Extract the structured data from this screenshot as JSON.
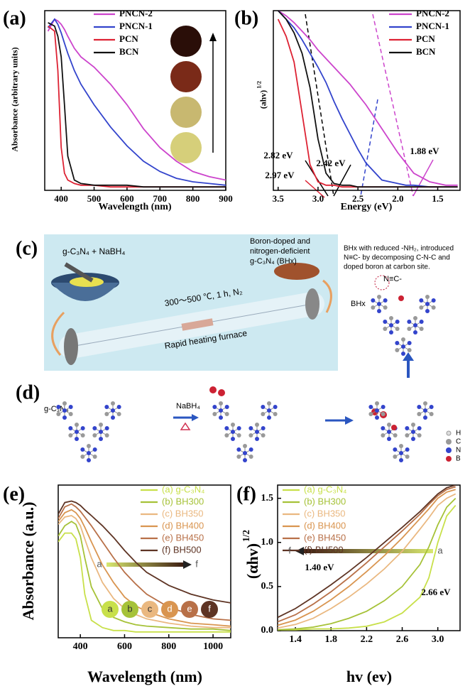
{
  "chart_data": [
    {
      "type": "line",
      "panel": "(a)",
      "xlabel": "Wavelength (nm)",
      "ylabel": "Absorbance (arbitrary units)",
      "xlim": [
        350,
        900
      ],
      "ylim": [
        0,
        1.05
      ],
      "xticks": [
        400,
        500,
        600,
        700,
        800,
        900
      ],
      "legend": "upper right",
      "x": [
        360,
        380,
        390,
        400,
        410,
        420,
        440,
        460,
        500,
        550,
        600,
        650,
        700,
        750,
        800,
        850,
        900
      ],
      "series": [
        {
          "name": "PNCN-2",
          "color": "#cc44cc",
          "values": [
            0.93,
            1.0,
            0.99,
            0.97,
            0.94,
            0.9,
            0.83,
            0.78,
            0.72,
            0.62,
            0.5,
            0.36,
            0.25,
            0.17,
            0.11,
            0.08,
            0.06
          ]
        },
        {
          "name": "PNCN-1",
          "color": "#3344cc",
          "values": [
            0.95,
            1.0,
            0.97,
            0.92,
            0.86,
            0.8,
            0.7,
            0.62,
            0.5,
            0.37,
            0.26,
            0.17,
            0.11,
            0.07,
            0.05,
            0.04,
            0.03
          ]
        },
        {
          "name": "PCN",
          "color": "#dd2233",
          "values": [
            0.96,
            0.93,
            0.7,
            0.25,
            0.1,
            0.06,
            0.04,
            0.03,
            0.03,
            0.02,
            0.02,
            0.02,
            0.02,
            0.02,
            0.02,
            0.02,
            0.02
          ]
        },
        {
          "name": "BCN",
          "color": "#111111",
          "values": [
            0.98,
            0.96,
            0.9,
            0.78,
            0.5,
            0.2,
            0.06,
            0.04,
            0.03,
            0.03,
            0.03,
            0.02,
            0.02,
            0.02,
            0.02,
            0.02,
            0.02
          ]
        }
      ]
    },
    {
      "type": "line",
      "panel": "(b)",
      "xlabel": "Energy (eV)",
      "ylabel": "(ahv)",
      "ylabel_sup": "1/2",
      "xlim": [
        3.56,
        1.22
      ],
      "ylim": [
        0,
        1.05
      ],
      "xticks": [
        {
          "value": 3.5,
          "label": "3.5"
        },
        {
          "value": 3,
          "label": "3.0"
        },
        {
          "value": 2.5,
          "label": "2.5"
        },
        {
          "value": 2,
          "label": "2.0"
        },
        {
          "value": 1.5,
          "label": "1.5"
        }
      ],
      "legend": "upper right",
      "annotations": [
        "2.82 eV",
        "2.97 eV",
        "2.42 eV",
        "1.88 eV"
      ],
      "x": [
        3.5,
        3.4,
        3.3,
        3.2,
        3.1,
        3.0,
        2.9,
        2.8,
        2.7,
        2.6,
        2.5,
        2.4,
        2.2,
        2.0,
        1.9,
        1.8,
        1.6,
        1.4,
        1.25
      ],
      "series": [
        {
          "name": "PNCN-2",
          "color": "#cc44cc",
          "values": [
            1.05,
            1.02,
            0.98,
            0.93,
            0.88,
            0.82,
            0.77,
            0.72,
            0.67,
            0.62,
            0.56,
            0.5,
            0.36,
            0.22,
            0.16,
            0.1,
            0.05,
            0.03,
            0.03
          ]
        },
        {
          "name": "PNCN-1",
          "color": "#3344cc",
          "values": [
            1.05,
            1.0,
            0.95,
            0.88,
            0.8,
            0.72,
            0.63,
            0.52,
            0.42,
            0.33,
            0.24,
            0.16,
            0.06,
            0.04,
            0.03,
            0.03,
            0.02,
            0.02,
            0.02
          ]
        },
        {
          "name": "PCN",
          "color": "#dd2233",
          "values": [
            1.0,
            0.9,
            0.75,
            0.45,
            0.15,
            0.05,
            0.03,
            0.03,
            0.02,
            0.02,
            0.02,
            0.02,
            0.02,
            0.02,
            0.02,
            0.02,
            0.02,
            0.02,
            0.02
          ]
        },
        {
          "name": "BCN",
          "color": "#111111",
          "values": [
            1.05,
            1.0,
            0.92,
            0.8,
            0.6,
            0.3,
            0.1,
            0.04,
            0.03,
            0.03,
            0.02,
            0.02,
            0.02,
            0.02,
            0.02,
            0.02,
            0.02,
            0.02,
            0.02
          ]
        }
      ]
    },
    {
      "type": "line",
      "panel": "(e)",
      "xlabel": "Wavelength (nm)",
      "ylabel": "Absorbance (a.u.)",
      "xlim": [
        300,
        1080
      ],
      "ylim": [
        0,
        1.05
      ],
      "xticks": [
        400,
        600,
        800,
        1000
      ],
      "legend": "upper right",
      "arrow_labels": [
        "a",
        "f"
      ],
      "swatch_labels": [
        "a",
        "b",
        "c",
        "d",
        "e",
        "f"
      ],
      "x": [
        300,
        330,
        360,
        380,
        400,
        420,
        450,
        500,
        550,
        600,
        650,
        700,
        800,
        900,
        1000,
        1080
      ],
      "series": [
        {
          "name": "(a) g-C₃N₄",
          "color": "#c8e04a",
          "values": [
            0.66,
            0.72,
            0.72,
            0.68,
            0.55,
            0.3,
            0.12,
            0.07,
            0.05,
            0.05,
            0.04,
            0.04,
            0.04,
            0.04,
            0.04,
            0.04
          ]
        },
        {
          "name": "(b) BH300",
          "color": "#a6c238",
          "values": [
            0.7,
            0.77,
            0.8,
            0.78,
            0.7,
            0.55,
            0.35,
            0.2,
            0.14,
            0.11,
            0.09,
            0.08,
            0.07,
            0.06,
            0.06,
            0.05
          ]
        },
        {
          "name": "(c) BH350",
          "color": "#eab880",
          "values": [
            0.78,
            0.83,
            0.84,
            0.82,
            0.77,
            0.68,
            0.55,
            0.38,
            0.27,
            0.2,
            0.16,
            0.13,
            0.1,
            0.08,
            0.07,
            0.07
          ]
        },
        {
          "name": "(d) BH400",
          "color": "#d99550",
          "values": [
            0.8,
            0.86,
            0.88,
            0.86,
            0.82,
            0.76,
            0.66,
            0.5,
            0.38,
            0.28,
            0.22,
            0.18,
            0.13,
            0.1,
            0.09,
            0.08
          ]
        },
        {
          "name": "(e) BH450",
          "color": "#b87048",
          "values": [
            0.82,
            0.9,
            0.92,
            0.9,
            0.87,
            0.83,
            0.77,
            0.66,
            0.55,
            0.45,
            0.37,
            0.3,
            0.21,
            0.16,
            0.13,
            0.12
          ]
        },
        {
          "name": "(f) BH500",
          "color": "#5e3424",
          "values": [
            0.85,
            0.93,
            0.94,
            0.93,
            0.91,
            0.88,
            0.84,
            0.77,
            0.69,
            0.6,
            0.52,
            0.45,
            0.36,
            0.3,
            0.26,
            0.24
          ]
        }
      ]
    },
    {
      "type": "line",
      "panel": "(f)",
      "xlabel": "hv (ev)",
      "ylabel": "(αhv)",
      "ylabel_sup": "1/2",
      "xlim": [
        1.2,
        3.25
      ],
      "ylim": [
        0,
        1.65
      ],
      "xticks": [
        1.4,
        1.8,
        2.2,
        2.6,
        {
          "value": 3,
          "label": "3.0"
        }
      ],
      "yticks": [
        {
          "value": 0,
          "label": "0.0"
        },
        0.5,
        {
          "value": 1,
          "label": "1.0"
        },
        1.5
      ],
      "legend": "upper left",
      "annotations": [
        "1.40 eV",
        "2.66 eV"
      ],
      "arrow_labels": [
        "f",
        "a"
      ],
      "x": [
        1.2,
        1.4,
        1.6,
        1.8,
        2.0,
        2.2,
        2.4,
        2.6,
        2.8,
        2.9,
        3.0,
        3.1,
        3.2
      ],
      "series": [
        {
          "name": "(a) g-C₃N₄",
          "color": "#c8e04a",
          "values": [
            0.01,
            0.01,
            0.02,
            0.02,
            0.03,
            0.05,
            0.1,
            0.2,
            0.38,
            0.6,
            1.0,
            1.3,
            1.42
          ]
        },
        {
          "name": "(b) BH300",
          "color": "#a6c238",
          "values": [
            0.01,
            0.02,
            0.04,
            0.08,
            0.14,
            0.22,
            0.34,
            0.5,
            0.75,
            0.95,
            1.2,
            1.4,
            1.5
          ]
        },
        {
          "name": "(c) BH350",
          "color": "#eab880",
          "values": [
            0.03,
            0.07,
            0.14,
            0.25,
            0.38,
            0.53,
            0.7,
            0.9,
            1.15,
            1.28,
            1.42,
            1.5,
            1.55
          ]
        },
        {
          "name": "(d) BH400",
          "color": "#d99550",
          "values": [
            0.06,
            0.12,
            0.22,
            0.35,
            0.5,
            0.67,
            0.85,
            1.05,
            1.27,
            1.38,
            1.5,
            1.57,
            1.6
          ]
        },
        {
          "name": "(e) BH450",
          "color": "#b87048",
          "values": [
            0.1,
            0.18,
            0.3,
            0.44,
            0.6,
            0.77,
            0.95,
            1.13,
            1.32,
            1.43,
            1.53,
            1.6,
            1.63
          ]
        },
        {
          "name": "(f) BH500",
          "color": "#5e3424",
          "values": [
            0.15,
            0.25,
            0.38,
            0.52,
            0.67,
            0.83,
            1.0,
            1.17,
            1.35,
            1.45,
            1.55,
            1.62,
            1.65
          ]
        }
      ]
    }
  ],
  "diagram": {
    "panel_c": "(c)",
    "reactants": "g-C₃N₄ + NaBH₄",
    "product": [
      "Boron-doped and",
      "nitrogen-deficient",
      "g-C₃N₄ (BHx)"
    ],
    "conditions": "300～500 ℃, 1 h, N₂",
    "furnace": "Rapid heating furnace",
    "description": [
      "BHx with reduced -NH₂, introduced",
      "N≡C- by decomposing C-N-C and",
      "doped boron at carbon site."
    ],
    "nitrile": "N≡C-",
    "bhx": "BHx",
    "panel_d": "(d)",
    "start": "g-C₃N₄",
    "reagent": "NaBH₄",
    "atoms": [
      "H",
      "C",
      "N",
      "B"
    ]
  }
}
